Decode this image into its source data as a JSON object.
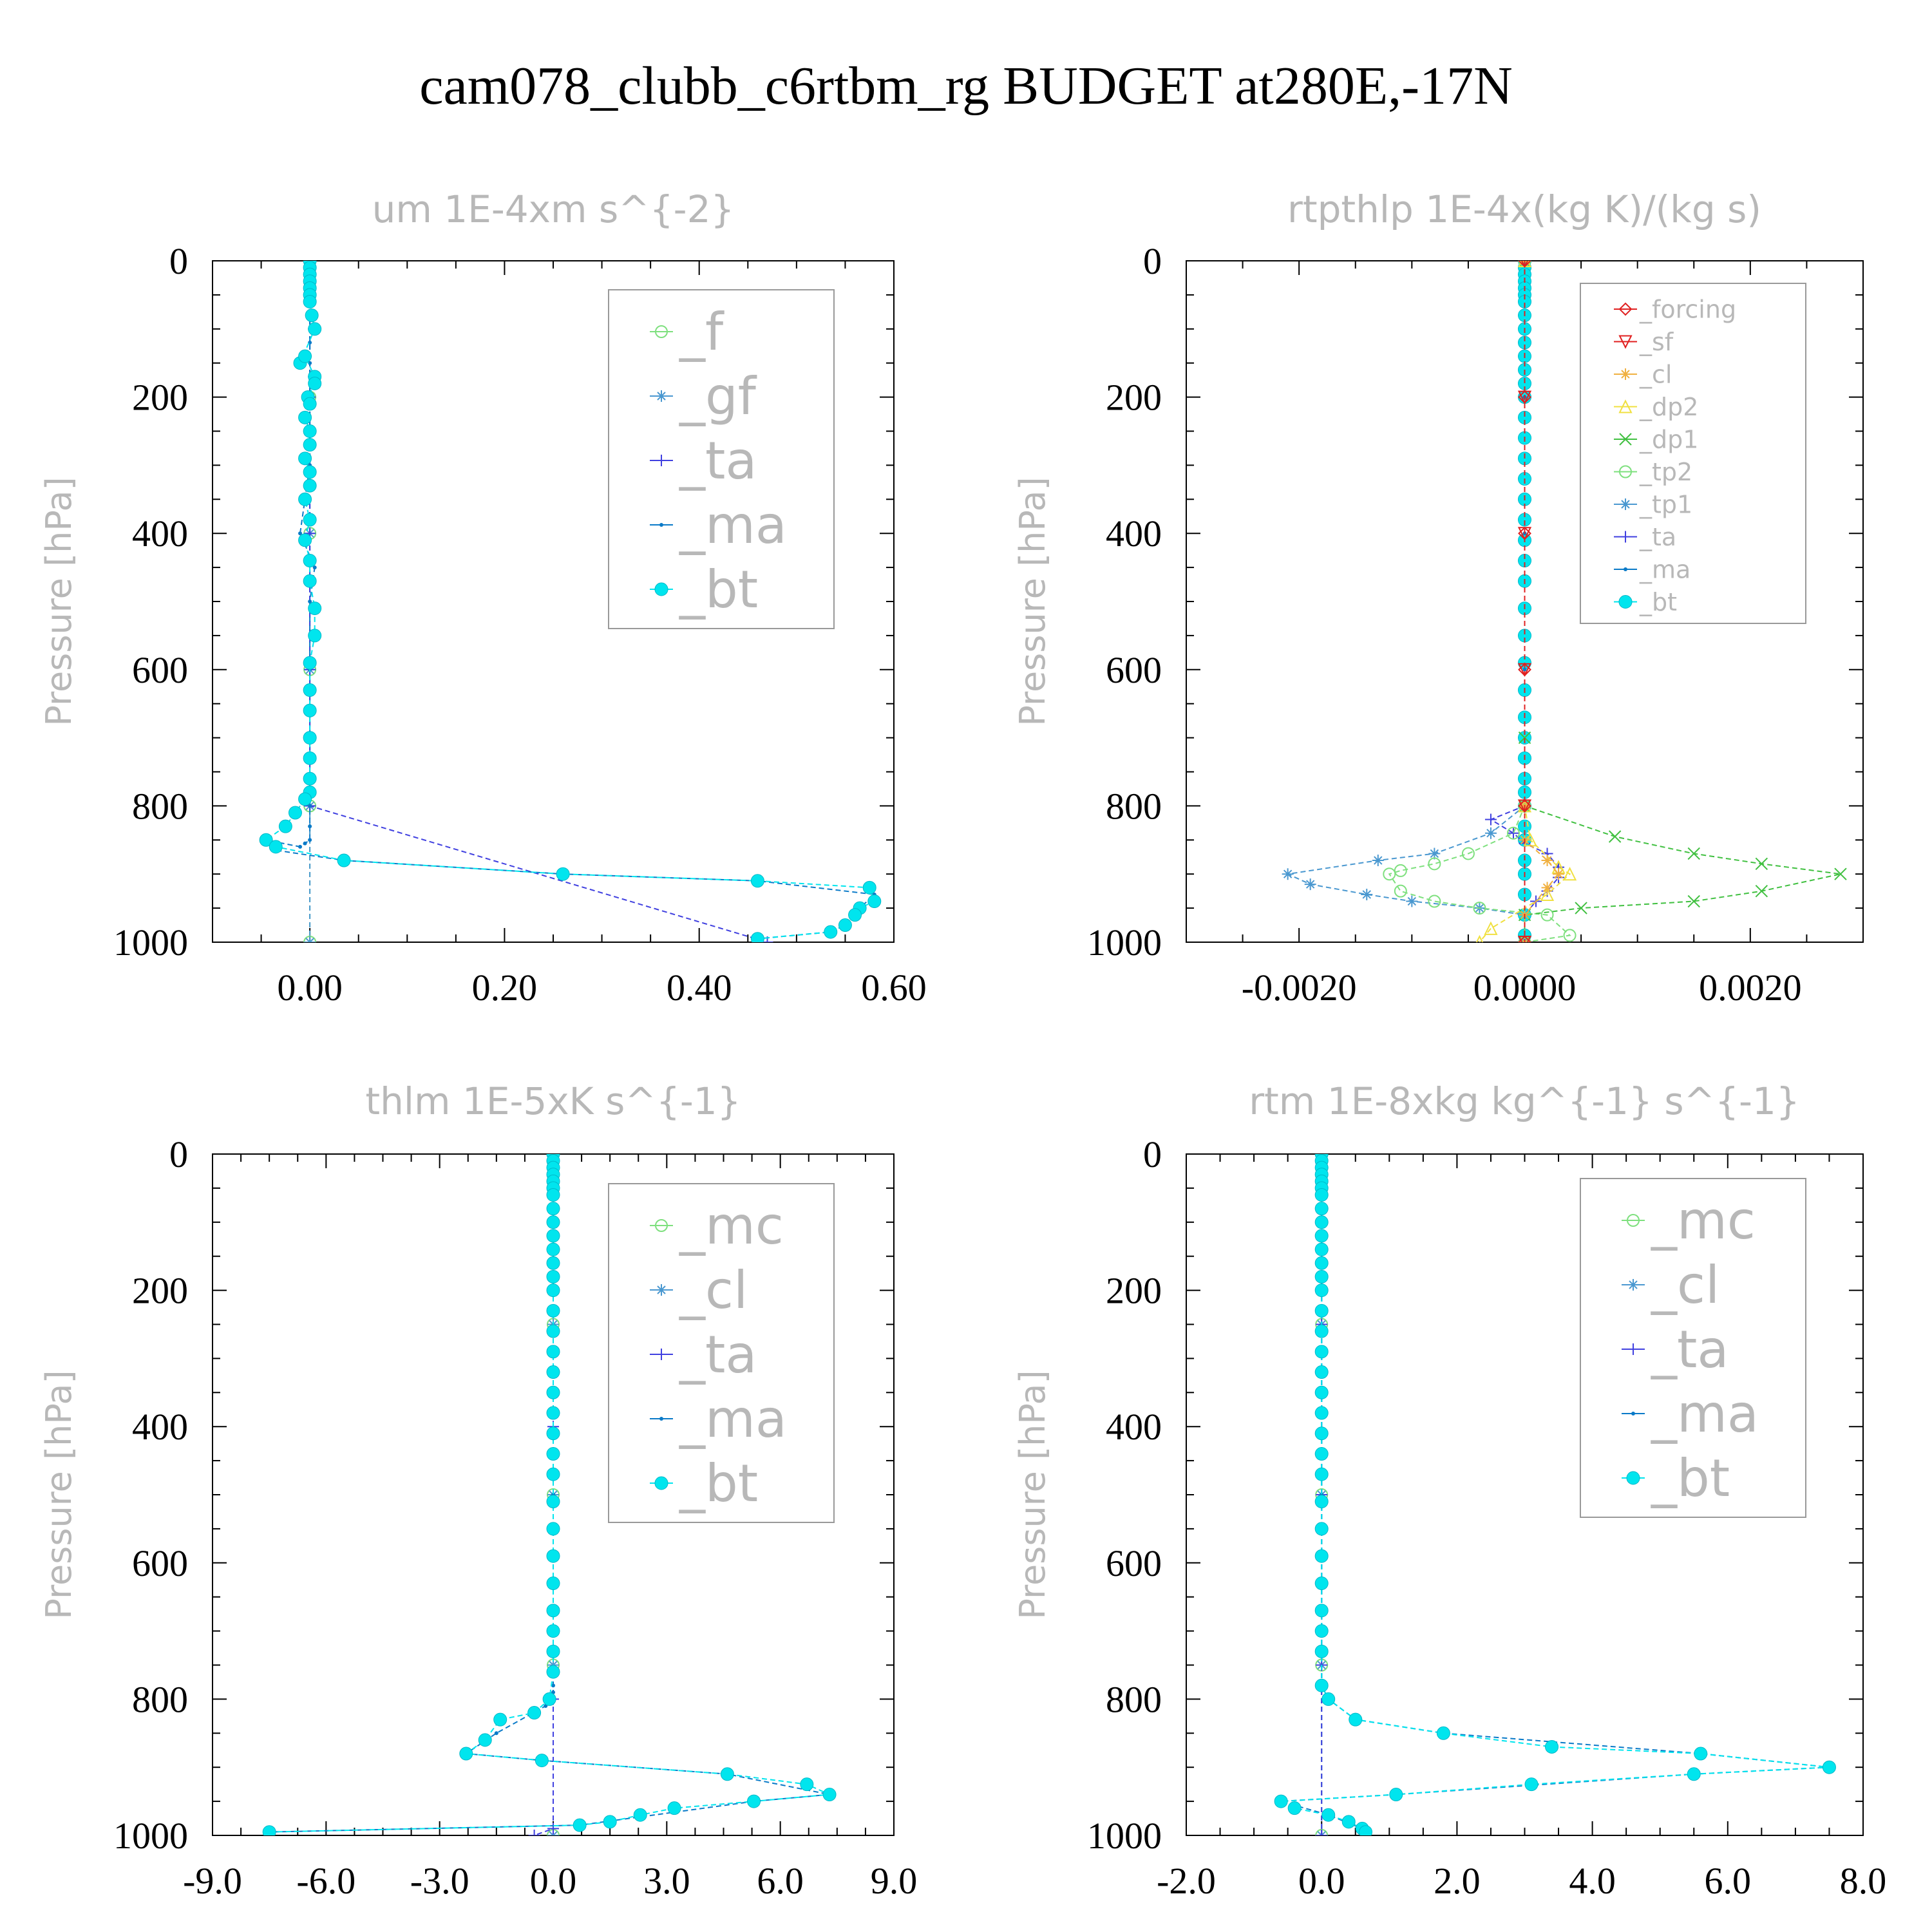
{
  "figure": {
    "title": "cam078_clubb_c6rtbm_rg  BUDGET at280E,-17N"
  },
  "colors": {
    "_f": "#7ee07e",
    "_gf": "#4a98d0",
    "_ta": "#4040e0",
    "_ma": "#0a7ac8",
    "_bt": "#00e5ee",
    "_forcing": "#e02020",
    "_sf": "#e02020",
    "_cl": "#f0b040",
    "_dp2": "#f0e040",
    "_dp1": "#40c040",
    "_tp2": "#7ee07e",
    "_tp1": "#4a98d0",
    "_mc": "#7ee07e",
    "_cl_blue": "#4a98d0"
  },
  "chart_data": [
    {
      "type": "line",
      "title": "um  1E-4xm s^{-2}",
      "ylabel": "Pressure [hPa]",
      "xlim": [
        -0.1,
        0.6
      ],
      "ylim": [
        1000,
        0
      ],
      "xticks": [
        0.0,
        0.2,
        0.4,
        0.6
      ],
      "xtick_labels": [
        "0.00",
        "0.20",
        "0.40",
        "0.60"
      ],
      "yticks": [
        0,
        200,
        400,
        600,
        800,
        1000
      ],
      "ytick_labels": [
        "0",
        "200",
        "400",
        "600",
        "800",
        "1000"
      ],
      "legend": [
        "_f",
        "_gf",
        "_ta",
        "_ma",
        "_bt"
      ],
      "legend_position": "top-right",
      "grid": false,
      "series": [
        {
          "name": "_bt",
          "x": [
            0.0,
            0.0,
            0.0,
            0.0,
            0.0,
            0.0,
            0.0,
            0.002,
            0.005,
            -0.01,
            -0.005,
            0.005,
            0.005,
            -0.002,
            0.0,
            -0.005,
            0.0,
            0.0,
            -0.005,
            0.0,
            0.0,
            -0.005,
            0.0,
            -0.005,
            0.0,
            0.0,
            0.005,
            0.005,
            0.0,
            0.0,
            0.0,
            0.0,
            0.0,
            0.0,
            0.0,
            -0.005,
            -0.015,
            -0.025,
            -0.045,
            -0.035,
            0.035,
            0.26,
            0.46,
            0.575,
            0.58,
            0.565,
            0.56,
            0.55,
            0.535,
            0.46
          ],
          "y": [
            0,
            10,
            20,
            30,
            40,
            50,
            60,
            80,
            100,
            150,
            140,
            170,
            180,
            200,
            210,
            230,
            250,
            270,
            290,
            310,
            330,
            350,
            380,
            410,
            440,
            470,
            510,
            550,
            590,
            630,
            660,
            700,
            730,
            760,
            780,
            790,
            810,
            830,
            850,
            860,
            880,
            900,
            910,
            920,
            940,
            950,
            960,
            975,
            985,
            995
          ]
        },
        {
          "name": "_ma",
          "x": [
            0.0,
            0.0,
            0.0,
            0.0,
            0.0,
            0.0,
            0.0,
            0.0,
            0.0,
            -0.01,
            0.005,
            0.0,
            0.0,
            0.0,
            0.0,
            0.0,
            0.0,
            0.0,
            0.0,
            -0.005,
            -0.01,
            -0.045,
            -0.035,
            0.035,
            0.26,
            0.46,
            0.58,
            0.565,
            0.55,
            0.535,
            0.46
          ],
          "y": [
            0,
            50,
            100,
            120,
            140,
            150,
            170,
            200,
            300,
            400,
            450,
            500,
            600,
            700,
            760,
            780,
            800,
            830,
            850,
            855,
            860,
            850,
            865,
            880,
            900,
            910,
            930,
            950,
            975,
            985,
            995
          ]
        },
        {
          "name": "_ta",
          "x": [
            0.0,
            0.0,
            0.0,
            0.0,
            0.0,
            0.47
          ],
          "y": [
            0,
            200,
            400,
            600,
            800,
            1000
          ]
        },
        {
          "name": "_gf",
          "x": [
            0.0,
            0.0,
            0.0,
            0.0,
            0.0,
            0.0
          ],
          "y": [
            0,
            200,
            400,
            600,
            800,
            1000
          ]
        },
        {
          "name": "_f",
          "x": [
            0.0,
            0.0,
            0.0,
            0.0,
            0.0,
            0.0
          ],
          "y": [
            0,
            200,
            400,
            600,
            800,
            1000
          ]
        }
      ]
    },
    {
      "type": "line",
      "title": "rtpthlp  1E-4x(kg K)/(kg s)",
      "ylabel": "Pressure [hPa]",
      "xlim": [
        -0.003,
        0.003
      ],
      "ylim": [
        1000,
        0
      ],
      "xticks": [
        -0.002,
        0.0,
        0.002
      ],
      "xtick_labels": [
        "-0.0020",
        "0.0000",
        "0.0020"
      ],
      "yticks": [
        0,
        200,
        400,
        600,
        800,
        1000
      ],
      "ytick_labels": [
        "0",
        "200",
        "400",
        "600",
        "800",
        "1000"
      ],
      "legend": [
        "_forcing",
        "_sf",
        "_cl",
        "_dp2",
        "_dp1",
        "_tp2",
        "_tp1",
        "_ta",
        "_ma",
        "_bt"
      ],
      "legend_position": "top-right",
      "grid": false,
      "series": [
        {
          "name": "_forcing",
          "x": [
            0.0,
            0.0,
            0.0,
            0.0,
            0.0,
            0.0
          ],
          "y": [
            0,
            200,
            400,
            600,
            800,
            1000
          ]
        },
        {
          "name": "_sf",
          "x": [
            0.0,
            0.0,
            0.0,
            0.0,
            0.0,
            0.0
          ],
          "y": [
            0,
            200,
            400,
            600,
            800,
            1000
          ]
        },
        {
          "name": "_cl",
          "x": [
            0.0,
            0.0,
            0.0,
            0.0002,
            0.0003,
            0.0002,
            0.0,
            0.0
          ],
          "y": [
            0,
            800,
            850,
            880,
            900,
            920,
            960,
            1000
          ]
        },
        {
          "name": "_dp2",
          "x": [
            0.0,
            0.0,
            5e-05,
            0.0003,
            0.0004,
            0.0002,
            -0.0003,
            -0.0004
          ],
          "y": [
            0,
            800,
            850,
            890,
            900,
            930,
            980,
            1000
          ]
        },
        {
          "name": "_dp1",
          "x": [
            0.0,
            0.0,
            0.0,
            0.0008,
            0.0015,
            0.0021,
            0.0028,
            0.0021,
            0.0015,
            0.0005,
            0.0,
            0.0
          ],
          "y": [
            0,
            700,
            800,
            845,
            870,
            885,
            900,
            925,
            940,
            950,
            960,
            1000
          ]
        },
        {
          "name": "_tp2",
          "x": [
            0.0,
            0.0,
            -0.0001,
            -0.0005,
            -0.0008,
            -0.0011,
            -0.0012,
            -0.0011,
            -0.0008,
            -0.0004,
            0.0002,
            0.0004,
            0.0
          ],
          "y": [
            0,
            800,
            840,
            870,
            885,
            895,
            900,
            925,
            940,
            950,
            960,
            990,
            1000
          ]
        },
        {
          "name": "_tp1",
          "x": [
            0.0,
            0.0,
            -0.0003,
            -0.0008,
            -0.0013,
            -0.0021,
            -0.0019,
            -0.0014,
            -0.001,
            -0.0004,
            0.0,
            0.0
          ],
          "y": [
            0,
            800,
            840,
            870,
            880,
            900,
            915,
            930,
            940,
            950,
            960,
            1000
          ]
        },
        {
          "name": "_ta",
          "x": [
            0.0,
            0.0,
            -0.0003,
            -0.0001,
            0.0,
            0.0002,
            0.0003,
            0.0003,
            0.0002,
            0.0001,
            0.0
          ],
          "y": [
            0,
            800,
            820,
            840,
            855,
            870,
            890,
            905,
            925,
            940,
            960
          ]
        },
        {
          "name": "_ma",
          "x": [
            0.0,
            0.0,
            0.0,
            0.0,
            0.0,
            0.0
          ],
          "y": [
            0,
            200,
            400,
            600,
            800,
            1000
          ]
        },
        {
          "name": "_bt",
          "x": [
            0.0,
            0.0,
            0.0,
            0.0,
            0.0,
            0.0,
            0.0,
            0.0,
            0.0,
            0.0,
            0.0,
            0.0,
            0.0,
            0.0,
            0.0,
            0.0,
            0.0,
            0.0,
            0.0,
            0.0,
            0.0,
            0.0,
            0.0,
            0.0,
            0.0,
            0.0,
            0.0,
            0.0,
            0.0,
            0.0,
            0.0,
            0.0,
            0.0,
            0.0,
            0.0,
            0.0,
            0.0,
            0.0,
            0.0,
            0.0
          ],
          "y": [
            0,
            10,
            20,
            30,
            40,
            50,
            60,
            80,
            100,
            120,
            140,
            160,
            180,
            200,
            230,
            260,
            290,
            320,
            350,
            380,
            410,
            440,
            470,
            510,
            550,
            590,
            630,
            670,
            700,
            730,
            760,
            780,
            800,
            830,
            850,
            880,
            900,
            930,
            960,
            990
          ]
        }
      ]
    },
    {
      "type": "line",
      "title": "thlm  1E-5xK s^{-1}",
      "ylabel": "Pressure [hPa]",
      "xlim": [
        -9.0,
        9.0
      ],
      "ylim": [
        1000,
        0
      ],
      "xticks": [
        -9.0,
        -6.0,
        -3.0,
        0.0,
        3.0,
        6.0,
        9.0
      ],
      "xtick_labels": [
        "-9.0",
        "-6.0",
        "-3.0",
        "0.0",
        "3.0",
        "6.0",
        "9.0"
      ],
      "yticks": [
        0,
        200,
        400,
        600,
        800,
        1000
      ],
      "ytick_labels": [
        "0",
        "200",
        "400",
        "600",
        "800",
        "1000"
      ],
      "legend": [
        "_mc",
        "_cl",
        "_ta",
        "_ma",
        "_bt"
      ],
      "legend_position": "top-right",
      "grid": false,
      "series": [
        {
          "name": "_bt",
          "x": [
            0.0,
            0.0,
            0.0,
            0.0,
            0.0,
            0.0,
            0.0,
            0.0,
            0.0,
            0.0,
            0.0,
            0.0,
            0.0,
            0.0,
            0.0,
            0.0,
            0.0,
            0.0,
            0.0,
            0.0,
            0.0,
            0.0,
            0.0,
            0.0,
            0.0,
            0.0,
            0.0,
            0.0,
            0.0,
            0.0,
            0.0,
            -0.1,
            -0.5,
            -1.4,
            -1.8,
            -2.3,
            -0.3,
            4.6,
            6.7,
            7.3,
            5.3,
            3.2,
            2.3,
            1.5,
            0.7,
            -7.5
          ],
          "y": [
            0,
            10,
            20,
            30,
            40,
            50,
            60,
            80,
            100,
            120,
            140,
            160,
            180,
            200,
            230,
            260,
            290,
            320,
            350,
            380,
            410,
            440,
            470,
            510,
            550,
            590,
            630,
            670,
            700,
            730,
            760,
            800,
            820,
            830,
            860,
            880,
            890,
            910,
            925,
            940,
            950,
            960,
            970,
            980,
            985,
            995
          ]
        },
        {
          "name": "_ma",
          "x": [
            0.0,
            0.0,
            0.0,
            0.0,
            -0.2,
            -1.5,
            -2.3,
            -0.3,
            4.6,
            7.3,
            5.3,
            0.7,
            -7.5
          ],
          "y": [
            0,
            500,
            780,
            790,
            810,
            850,
            880,
            890,
            910,
            940,
            950,
            985,
            995
          ]
        },
        {
          "name": "_ta",
          "x": [
            0.0,
            0.0,
            0.0,
            0.0,
            -0.5
          ],
          "y": [
            0,
            400,
            800,
            990,
            1000
          ]
        },
        {
          "name": "_cl",
          "x": [
            0.0,
            0.0,
            0.0,
            0.0,
            0.0
          ],
          "y": [
            0,
            250,
            500,
            750,
            1000
          ]
        },
        {
          "name": "_mc",
          "x": [
            0.0,
            0.0,
            0.0,
            0.0,
            0.0
          ],
          "y": [
            0,
            250,
            500,
            750,
            1000
          ]
        }
      ]
    },
    {
      "type": "line",
      "title": "rtm  1E-8xkg kg^{-1} s^{-1}",
      "ylabel": "Pressure [hPa]",
      "xlim": [
        -2.0,
        8.0
      ],
      "ylim": [
        1000,
        0
      ],
      "xticks": [
        -2.0,
        0.0,
        2.0,
        4.0,
        6.0,
        8.0
      ],
      "xtick_labels": [
        "-2.0",
        "0.0",
        "2.0",
        "4.0",
        "6.0",
        "8.0"
      ],
      "yticks": [
        0,
        200,
        400,
        600,
        800,
        1000
      ],
      "ytick_labels": [
        "0",
        "200",
        "400",
        "600",
        "800",
        "1000"
      ],
      "legend": [
        "_mc",
        "_cl",
        "_ta",
        "_ma",
        "_bt"
      ],
      "legend_position": "top-right",
      "grid": false,
      "series": [
        {
          "name": "_bt",
          "x": [
            0.0,
            0.0,
            0.0,
            0.0,
            0.0,
            0.0,
            0.0,
            0.0,
            0.0,
            0.0,
            0.0,
            0.0,
            0.0,
            0.0,
            0.0,
            0.0,
            0.0,
            0.0,
            0.0,
            0.0,
            0.0,
            0.0,
            0.0,
            0.0,
            0.0,
            0.0,
            0.0,
            0.0,
            0.0,
            0.0,
            0.0,
            0.1,
            0.5,
            1.8,
            3.4,
            5.6,
            7.5,
            5.5,
            3.1,
            1.1,
            -0.6,
            -0.4,
            0.1,
            0.4,
            0.6,
            0.65
          ],
          "y": [
            0,
            10,
            20,
            30,
            40,
            50,
            60,
            80,
            100,
            120,
            140,
            160,
            180,
            200,
            230,
            260,
            290,
            320,
            350,
            380,
            410,
            440,
            470,
            510,
            550,
            590,
            630,
            670,
            700,
            730,
            780,
            800,
            830,
            850,
            870,
            880,
            900,
            910,
            925,
            940,
            950,
            960,
            970,
            980,
            990,
            995
          ]
        },
        {
          "name": "_ma",
          "x": [
            0.0,
            0.0,
            0.0,
            0.1,
            0.5,
            1.8,
            5.6,
            7.5,
            5.5,
            1.1,
            -0.6,
            0.1,
            0.6
          ],
          "y": [
            0,
            500,
            780,
            800,
            830,
            850,
            880,
            900,
            910,
            940,
            950,
            970,
            990
          ]
        },
        {
          "name": "_ta",
          "x": [
            0.0,
            0.0,
            0.0,
            0.0,
            0.0
          ],
          "y": [
            0,
            250,
            500,
            750,
            1000
          ]
        },
        {
          "name": "_cl",
          "x": [
            0.0,
            0.0,
            0.0,
            0.0,
            0.0
          ],
          "y": [
            0,
            250,
            500,
            750,
            1000
          ]
        },
        {
          "name": "_mc",
          "x": [
            0.0,
            0.0,
            0.0,
            0.0,
            0.0
          ],
          "y": [
            0,
            250,
            500,
            750,
            1000
          ]
        }
      ]
    }
  ]
}
